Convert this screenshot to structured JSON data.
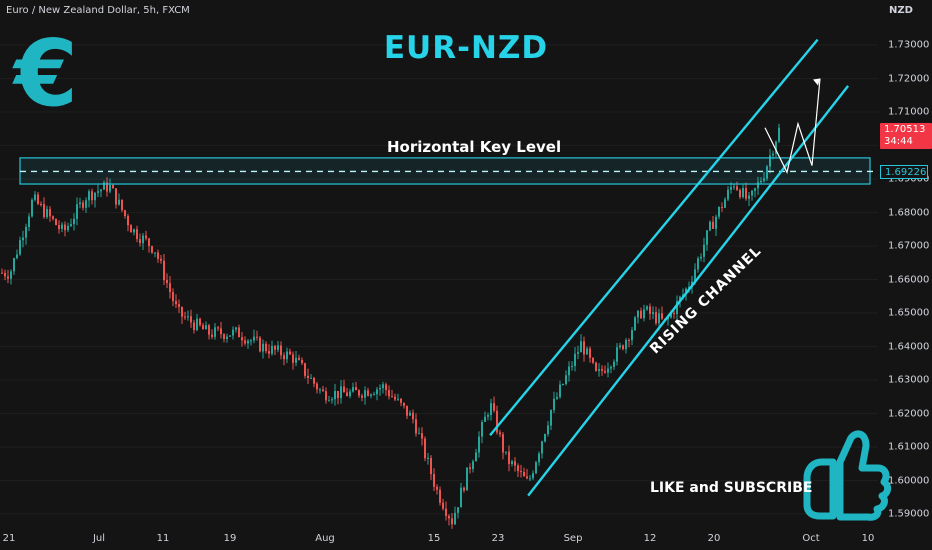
{
  "header": {
    "symbol_line": "Euro / New Zealand Dollar, 5h, FXCM",
    "currency": "NZD",
    "title": "EUR-NZD",
    "euro_symbol": "€"
  },
  "annotations": {
    "key_level": "Horizontal Key Level",
    "channel": "RISING CHANNEL",
    "cta": "LIKE and SUBSCRIBE"
  },
  "price_tag": {
    "price": "1.70513",
    "countdown": "34:44"
  },
  "level_tag": "1.69226",
  "colors": {
    "background": "#141414",
    "accent": "#26d3e8",
    "up_candle": "#26a69a",
    "down_candle": "#ef5350",
    "price_tag": "#f23645",
    "thumbs_up_icon": "#1fb5c2"
  },
  "icons": [
    "euro-icon",
    "thumbs-up-icon"
  ],
  "chart_data": {
    "type": "candlestick",
    "y_axis_ticks": [
      "1.73000",
      "1.72000",
      "1.71000",
      "1.70000",
      "1.69000",
      "1.68000",
      "1.67000",
      "1.66000",
      "1.65000",
      "1.64000",
      "1.63000",
      "1.62000",
      "1.61000",
      "1.60000",
      "1.59000"
    ],
    "x_axis_ticks": [
      "21",
      "Jul",
      "11",
      "19",
      "Aug",
      "15",
      "23",
      "Sep",
      "12",
      "20",
      "Oct",
      "10"
    ],
    "ylim": [
      1.5875,
      1.7345
    ],
    "key_level": 1.69226,
    "key_zone": [
      1.6885,
      1.6963
    ],
    "last_price": 1.70513,
    "channel_upper": [
      [
        "Aug 20",
        1.6135
      ],
      [
        "Oct 2",
        1.7316
      ]
    ],
    "channel_lower": [
      [
        "Aug 25",
        1.5955
      ],
      [
        "Oct 6",
        1.7178
      ]
    ],
    "projection": [
      1.7053,
      1.692,
      1.7065,
      1.694,
      1.72
    ],
    "price_path": [
      [
        "Jun 18",
        1.662
      ],
      [
        "Jun 21",
        1.684
      ],
      [
        "Jun 25",
        1.674
      ],
      [
        "Jun 28",
        1.685
      ],
      [
        "Jul 1",
        1.688
      ],
      [
        "Jul 4",
        1.675
      ],
      [
        "Jul 7",
        1.669
      ],
      [
        "Jul 10",
        1.65
      ],
      [
        "Jul 14",
        1.644
      ],
      [
        "Jul 18",
        1.644
      ],
      [
        "Jul 21",
        1.64
      ],
      [
        "Jul 25",
        1.637
      ],
      [
        "Jul 29",
        1.626
      ],
      [
        "Aug 2",
        1.626
      ],
      [
        "Aug 6",
        1.628
      ],
      [
        "Aug 10",
        1.618
      ],
      [
        "Aug 13",
        1.597
      ],
      [
        "Aug 15",
        1.588
      ],
      [
        "Aug 18",
        1.609
      ],
      [
        "Aug 20",
        1.623
      ],
      [
        "Aug 22",
        1.607
      ],
      [
        "Aug 25",
        1.599
      ],
      [
        "Aug 28",
        1.621
      ],
      [
        "Sep 1",
        1.641
      ],
      [
        "Sep 3",
        1.631
      ],
      [
        "Sep 6",
        1.639
      ],
      [
        "Sep 9",
        1.651
      ],
      [
        "Sep 12",
        1.647
      ],
      [
        "Sep 15",
        1.658
      ],
      [
        "Sep 18",
        1.676
      ],
      [
        "Sep 21",
        1.689
      ],
      [
        "Sep 23",
        1.683
      ],
      [
        "Sep 25",
        1.692
      ],
      [
        "Sep 27",
        1.7053
      ]
    ]
  }
}
